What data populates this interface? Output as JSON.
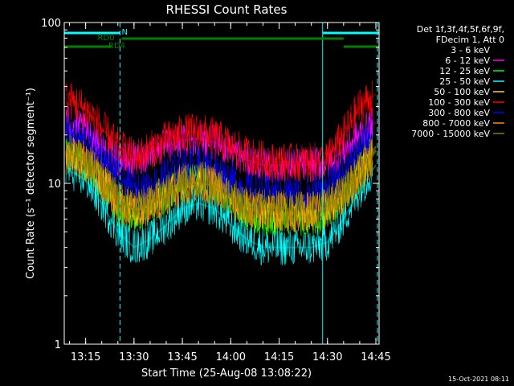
{
  "chart_data": {
    "type": "line",
    "title": "RHESSI Count Rates",
    "xlabel": "Start Time (25-Aug-08 13:08:22)",
    "ylabel": "Count Rate (s⁻¹ detector segment⁻¹)",
    "y_scale": "log",
    "ylim": [
      1,
      100
    ],
    "xlim": [
      "13:08:22",
      "14:46:00"
    ],
    "x_ticks": [
      "13:15",
      "13:30",
      "13:45",
      "14:00",
      "14:15",
      "14:30",
      "14:45"
    ],
    "y_ticks": [
      "1",
      "10",
      "100"
    ],
    "grid": false,
    "legend_position": "right",
    "legend_header": [
      "Det 1f,3f,4f,5f,6f,9f,",
      "FDecim 1, Att 0"
    ],
    "x": [
      "13:10",
      "13:15",
      "13:20",
      "13:25",
      "13:30",
      "13:35",
      "13:40",
      "13:45",
      "13:50",
      "13:55",
      "14:00",
      "14:05",
      "14:10",
      "14:15",
      "14:20",
      "14:25",
      "14:30",
      "14:35",
      "14:40",
      "14:45"
    ],
    "series": [
      {
        "name": "3 - 6 keV",
        "color": "#000000",
        "values": [
          14,
          12,
          9,
          6.5,
          5.5,
          6.5,
          8,
          9.5,
          10,
          9,
          7.5,
          6,
          5.5,
          5.5,
          5.5,
          5.5,
          6,
          7,
          10,
          15
        ]
      },
      {
        "name": "6 - 12 keV",
        "color": "#ff00ff",
        "values": [
          24,
          21,
          17,
          14,
          14,
          15.5,
          17,
          18.5,
          19,
          18,
          16,
          14,
          13,
          13,
          13,
          13,
          13.5,
          16,
          20,
          24
        ]
      },
      {
        "name": "12 - 25 keV",
        "color": "#00ff00",
        "values": [
          15,
          13,
          10,
          7,
          6.2,
          7,
          8.5,
          10,
          10.5,
          9.5,
          8,
          6.5,
          6,
          6,
          6,
          6,
          6.5,
          8,
          11,
          16
        ]
      },
      {
        "name": "25 - 50 keV",
        "color": "#00ffff",
        "values": [
          12,
          10.5,
          7.5,
          5,
          4,
          4.5,
          5.5,
          7,
          7.5,
          7,
          5.5,
          4.5,
          4,
          4,
          4,
          4,
          4.3,
          6,
          9,
          13
        ]
      },
      {
        "name": "50 - 100 keV",
        "color": "#ffd700",
        "values": [
          16,
          14,
          11,
          8,
          6.8,
          7.5,
          9,
          10.5,
          11,
          10,
          8.5,
          7,
          6.5,
          6.5,
          6.5,
          6.5,
          7,
          8.5,
          12,
          17
        ]
      },
      {
        "name": "100 - 300 keV",
        "color": "#ff0000",
        "values": [
          33,
          29,
          22,
          17,
          14.5,
          16,
          18.5,
          20.5,
          21,
          19.5,
          17,
          15,
          14,
          13.5,
          13.5,
          13.5,
          14,
          20,
          30,
          36
        ]
      },
      {
        "name": "300 - 800 keV",
        "color": "#0000ff",
        "values": [
          20,
          18,
          14.5,
          11,
          9,
          9.5,
          11,
          12.5,
          13,
          12,
          10.5,
          9,
          8.5,
          8.5,
          8.5,
          8.5,
          9,
          11.5,
          16,
          21
        ]
      },
      {
        "name": "800 - 7000 keV",
        "color": "#ff8c00",
        "values": [
          15,
          13.5,
          10.5,
          7.5,
          6.8,
          7.2,
          8.5,
          9.8,
          10.2,
          9.5,
          8,
          7,
          6.7,
          6.7,
          6.7,
          6.7,
          7,
          8.5,
          11.5,
          16
        ]
      },
      {
        "name": "7000 - 15000 keV",
        "color": "#808000",
        "values": [
          15.5,
          13.8,
          10.8,
          7.8,
          7,
          7.4,
          8.7,
          10,
          10.4,
          9.7,
          8.2,
          7.2,
          6.9,
          6.9,
          6.9,
          6.9,
          7.2,
          8.7,
          11.8,
          16.5
        ]
      }
    ],
    "annotations": {
      "bars": [
        {
          "label": "N",
          "color": "#00ffff",
          "start": "13:08:22",
          "end": "13:25:40"
        },
        {
          "label": "",
          "color": "#00ffff",
          "start": "14:28:30",
          "end": "14:46:00"
        },
        {
          "label": "RD0",
          "color": "#008000",
          "start": "13:26:10",
          "end": "14:35:00"
        },
        {
          "label": "RD4",
          "color": "#008000",
          "start": "13:08:22",
          "end": "13:23:00"
        },
        {
          "label": "",
          "color": "#008000",
          "start": "14:35:00",
          "end": "14:46:00"
        }
      ],
      "solid_vlines": [
        "13:08:22",
        "14:28:30"
      ],
      "dashed_vlines": [
        "13:25:40",
        "14:45:30"
      ]
    },
    "footer_stamp": "15-Oct-2021 08:11"
  }
}
